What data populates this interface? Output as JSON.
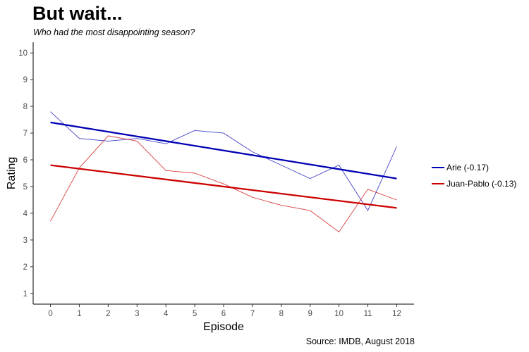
{
  "title": "But wait...",
  "subtitle": "Who had the most disappointing season?",
  "source": "Source: IMDB, August 2018",
  "chart_data": {
    "type": "line",
    "xlabel": "Episode",
    "ylabel": "Rating",
    "xlim": [
      -0.6,
      12.6
    ],
    "ylim": [
      0.6,
      10.4
    ],
    "x_ticks": [
      "0",
      "1",
      "2",
      "3",
      "4",
      "5",
      "6",
      "7",
      "8",
      "9",
      "10",
      "11",
      "12"
    ],
    "y_ticks": [
      "1",
      "2",
      "3",
      "4",
      "5",
      "6",
      "7",
      "8",
      "9",
      "10"
    ],
    "grid": false,
    "legend_position": "right",
    "series": [
      {
        "name": "Arie (-0.17)",
        "color": "#0000b4",
        "x": [
          0,
          1,
          2,
          3,
          4,
          5,
          6,
          7,
          8,
          9,
          10,
          11,
          12
        ],
        "values": [
          7.8,
          6.8,
          6.7,
          6.8,
          6.6,
          7.1,
          7.0,
          6.3,
          5.8,
          5.3,
          5.8,
          4.1,
          6.5
        ],
        "trend": [
          7.4,
          5.3
        ]
      },
      {
        "name": "Juan-Pablo (-0.13)",
        "color": "#cc0000",
        "x": [
          0,
          1,
          2,
          3,
          4,
          5,
          6,
          7,
          8,
          9,
          10,
          11,
          12
        ],
        "values": [
          3.7,
          5.7,
          6.9,
          6.7,
          5.6,
          5.5,
          5.1,
          4.6,
          4.3,
          4.1,
          3.3,
          4.9,
          4.5
        ],
        "trend": [
          5.8,
          4.2
        ]
      }
    ]
  }
}
